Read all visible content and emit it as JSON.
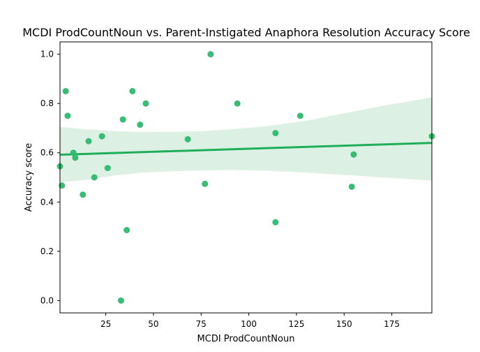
{
  "chart_data": {
    "type": "scatter",
    "title": "MCDI ProdCountNoun vs. Parent-Instigated Anaphora Resolution Accuracy Score",
    "xlabel": "MCDI ProdCountNoun",
    "ylabel": "Accuracy score",
    "xlim": [
      1,
      196
    ],
    "ylim": [
      -0.05,
      1.05
    ],
    "xticks": [
      25,
      50,
      75,
      100,
      125,
      150,
      175
    ],
    "yticks": [
      0.0,
      0.2,
      0.4,
      0.6,
      0.8,
      1.0
    ],
    "xtick_labels": [
      "25",
      "50",
      "75",
      "100",
      "125",
      "150",
      "175"
    ],
    "ytick_labels": [
      "0.0",
      "0.2",
      "0.4",
      "0.6",
      "0.8",
      "1.0"
    ],
    "grid": false,
    "colors": {
      "points": "#2eb86e",
      "regression_line": "#1fae5a",
      "confidence_band": "#dcf0e3"
    },
    "points": [
      {
        "x": 1,
        "y": 0.545
      },
      {
        "x": 2,
        "y": 0.467
      },
      {
        "x": 4,
        "y": 0.85
      },
      {
        "x": 5,
        "y": 0.75
      },
      {
        "x": 8,
        "y": 0.6
      },
      {
        "x": 9,
        "y": 0.58
      },
      {
        "x": 13,
        "y": 0.43
      },
      {
        "x": 16,
        "y": 0.647
      },
      {
        "x": 19,
        "y": 0.5
      },
      {
        "x": 23,
        "y": 0.667
      },
      {
        "x": 26,
        "y": 0.538
      },
      {
        "x": 33,
        "y": 0.0
      },
      {
        "x": 34,
        "y": 0.735
      },
      {
        "x": 36,
        "y": 0.286
      },
      {
        "x": 39,
        "y": 0.85
      },
      {
        "x": 43,
        "y": 0.714
      },
      {
        "x": 46,
        "y": 0.8
      },
      {
        "x": 68,
        "y": 0.655
      },
      {
        "x": 77,
        "y": 0.474
      },
      {
        "x": 80,
        "y": 1.0
      },
      {
        "x": 94,
        "y": 0.8
      },
      {
        "x": 114,
        "y": 0.68
      },
      {
        "x": 114,
        "y": 0.318
      },
      {
        "x": 127,
        "y": 0.75
      },
      {
        "x": 154,
        "y": 0.462
      },
      {
        "x": 155,
        "y": 0.593
      },
      {
        "x": 196,
        "y": 0.667
      }
    ],
    "regression": {
      "x": [
        1,
        196
      ],
      "y": [
        0.592,
        0.64
      ]
    },
    "confidence_band": {
      "x": [
        1,
        15,
        30,
        45,
        60,
        75,
        90,
        110,
        130,
        150,
        170,
        196
      ],
      "upper": [
        0.705,
        0.695,
        0.688,
        0.684,
        0.685,
        0.688,
        0.695,
        0.708,
        0.73,
        0.76,
        0.79,
        0.825
      ],
      "lower": [
        0.48,
        0.49,
        0.508,
        0.52,
        0.525,
        0.528,
        0.53,
        0.527,
        0.52,
        0.51,
        0.5,
        0.487
      ]
    }
  }
}
